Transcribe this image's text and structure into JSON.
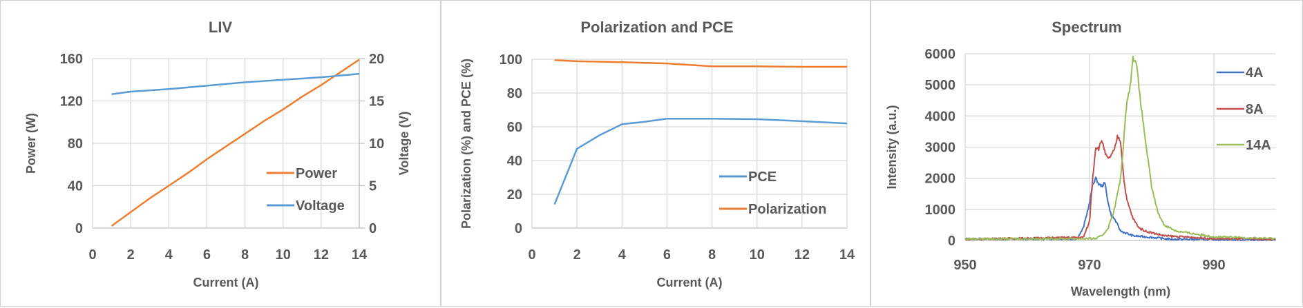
{
  "chart_data": [
    {
      "type": "line",
      "title": "LIV",
      "xlabel": "Current (A)",
      "ylabel": "Power (W)",
      "y2label": "Voltage (V)",
      "xlim": [
        0,
        14
      ],
      "ylim": [
        0,
        160
      ],
      "y2lim": [
        0,
        20
      ],
      "xticks": [
        0,
        2,
        4,
        6,
        8,
        10,
        12,
        14
      ],
      "yticks": [
        0,
        40,
        80,
        120,
        160
      ],
      "y2ticks": [
        0,
        5,
        10,
        15,
        20
      ],
      "grid": true,
      "legend_position": "bottom-right",
      "series": [
        {
          "name": "Power",
          "axis": "left",
          "color": "#ED7D31",
          "x": [
            1,
            2,
            3,
            4,
            5,
            6,
            7,
            8,
            9,
            10,
            11,
            12,
            13,
            14
          ],
          "y": [
            2,
            15,
            28,
            40,
            52,
            65,
            77,
            89,
            101,
            112,
            124,
            135,
            147,
            159
          ]
        },
        {
          "name": "Voltage",
          "axis": "right",
          "color": "#5B9BD5",
          "x": [
            1,
            2,
            4,
            6,
            8,
            10,
            12,
            14
          ],
          "y": [
            15.8,
            16.1,
            16.4,
            16.8,
            17.2,
            17.5,
            17.8,
            18.2
          ]
        }
      ]
    },
    {
      "type": "line",
      "title": "Polarization and PCE",
      "xlabel": "Current (A)",
      "ylabel": "Polarization (%) and PCE (%)",
      "xlim": [
        0,
        14
      ],
      "ylim": [
        0,
        100
      ],
      "xticks": [
        0,
        2,
        4,
        6,
        8,
        10,
        12,
        14
      ],
      "yticks": [
        0,
        20,
        40,
        60,
        80,
        100
      ],
      "grid": true,
      "legend_position": "bottom-right",
      "series": [
        {
          "name": "PCE",
          "color": "#5B9BD5",
          "x": [
            1,
            2,
            3,
            4,
            5,
            6,
            8,
            10,
            12,
            14
          ],
          "y": [
            14,
            47,
            55,
            61.5,
            63,
            64.8,
            64.8,
            64.5,
            63.3,
            62
          ]
        },
        {
          "name": "Polarization",
          "color": "#ED7D31",
          "x": [
            1,
            2,
            4,
            6,
            8,
            10,
            12,
            14
          ],
          "y": [
            99.5,
            98.8,
            98.3,
            97.5,
            95.8,
            95.8,
            95.5,
            95.5
          ]
        }
      ]
    },
    {
      "type": "line",
      "title": "Spectrum",
      "xlabel": "Wavelength (nm)",
      "ylabel": "Intensity (a.u.)",
      "xlim": [
        950,
        1000
      ],
      "ylim": [
        0,
        6000
      ],
      "xticks": [
        950,
        970,
        990
      ],
      "yticks": [
        0,
        1000,
        2000,
        3000,
        4000,
        5000,
        6000
      ],
      "grid": true,
      "legend_position": "top-right",
      "series": [
        {
          "name": "4A",
          "color": "#4472C4",
          "x": [
            950,
            968,
            969,
            970,
            970.5,
            971,
            971.5,
            972,
            972.5,
            973,
            973.5,
            974,
            975,
            977,
            980,
            983,
            1000
          ],
          "y": [
            50,
            50,
            400,
            1200,
            1800,
            2000,
            1800,
            1750,
            1850,
            1200,
            800,
            700,
            300,
            150,
            100,
            40,
            20
          ]
        },
        {
          "name": "8A",
          "color": "#C0504D",
          "x": [
            950,
            969,
            970,
            970.5,
            971,
            971.5,
            972,
            972.5,
            973,
            974,
            974.5,
            975,
            975.5,
            976,
            977,
            978,
            979,
            982,
            990,
            1000
          ],
          "y": [
            40,
            100,
            600,
            2000,
            3000,
            2950,
            3250,
            2800,
            2600,
            2900,
            3350,
            3200,
            2000,
            1300,
            700,
            400,
            300,
            150,
            60,
            40
          ]
        },
        {
          "name": "14A",
          "color": "#9BBB59",
          "x": [
            950,
            971,
            972,
            973,
            974,
            975,
            975.5,
            976,
            976.5,
            977,
            977.5,
            978,
            979,
            980,
            981,
            982,
            984,
            990,
            1000
          ],
          "y": [
            50,
            60,
            150,
            400,
            1000,
            2000,
            3200,
            4500,
            4900,
            5850,
            5800,
            4800,
            3200,
            1700,
            900,
            500,
            300,
            120,
            60
          ]
        }
      ]
    }
  ]
}
